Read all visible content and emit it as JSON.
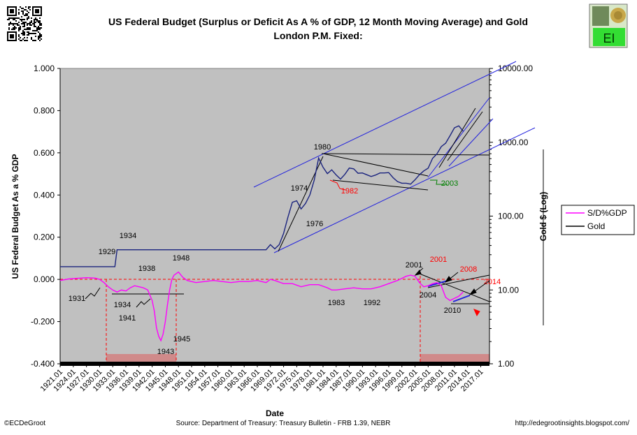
{
  "chart_data": {
    "type": "line",
    "title_line1": "US Federal Budget (Surplus or Deficit As A % of GDP, 12 Month Moving Average) and Gold",
    "title_line2": "London P.M. Fixed:",
    "xlabel": "Date",
    "ylabel_left": "US Federal Budget As a %  GDP",
    "ylabel_right": "Gold $ (Log)",
    "y_left_ticks": [
      "1.000",
      "0.800",
      "0.600",
      "0.400",
      "0.200",
      "0.000",
      "-0.200",
      "-0.400"
    ],
    "y_left_range": [
      -0.4,
      1.0
    ],
    "y_right_ticks": [
      "10000.00",
      "1000.00",
      "100.00",
      "10.00",
      "1.00"
    ],
    "y_right_scale": "log",
    "y_right_range": [
      1,
      10000
    ],
    "x_ticks": [
      "1921.01",
      "1924.01",
      "1927.01",
      "1930.01",
      "1933.01",
      "1936.01",
      "1939.01",
      "1942.01",
      "1945.01",
      "1948.01",
      "1951.01",
      "1954.01",
      "1957.01",
      "1960.01",
      "1963.01",
      "1966.01",
      "1969.01",
      "1972.01",
      "1975.01",
      "1978.01",
      "1981.01",
      "1984.01",
      "1987.01",
      "1990.01",
      "1993.01",
      "1996.01",
      "1999.01",
      "2002.01",
      "2005.01",
      "2008.01",
      "2011.01",
      "2014.01",
      "2017.01"
    ],
    "x_range": [
      1921,
      2019
    ],
    "legend": {
      "placement": "right",
      "entries": [
        "S/D%GDP",
        "Gold"
      ]
    },
    "series": [
      {
        "name": "S/D%GDP",
        "color": "#ff00ff",
        "axis": "left",
        "x": [
          1921,
          1923,
          1925,
          1927,
          1929,
          1930,
          1931,
          1932,
          1933,
          1934,
          1935,
          1936,
          1937,
          1938,
          1939,
          1940,
          1941,
          1942,
          1942.5,
          1943,
          1943.5,
          1944,
          1944.5,
          1945,
          1945.5,
          1946,
          1946.5,
          1947,
          1948,
          1949,
          1950,
          1952,
          1954,
          1956,
          1958,
          1960,
          1962,
          1964,
          1966,
          1968,
          1969,
          1970,
          1972,
          1974,
          1976,
          1978,
          1980,
          1982,
          1983,
          1984,
          1986,
          1988,
          1990,
          1992,
          1994,
          1996,
          1998,
          2000,
          2001,
          2002,
          2003,
          2004,
          2005,
          2006,
          2007,
          2008,
          2009,
          2010,
          2011,
          2012,
          2013
        ],
        "y": [
          -0.005,
          0.002,
          0.005,
          0.008,
          0.006,
          0.0,
          -0.015,
          -0.035,
          -0.05,
          -0.06,
          -0.05,
          -0.055,
          -0.04,
          -0.03,
          -0.035,
          -0.04,
          -0.05,
          -0.1,
          -0.15,
          -0.23,
          -0.27,
          -0.29,
          -0.26,
          -0.2,
          -0.12,
          -0.05,
          0.0,
          0.02,
          0.035,
          0.01,
          -0.005,
          -0.015,
          -0.01,
          -0.005,
          -0.01,
          -0.015,
          -0.01,
          -0.01,
          -0.005,
          -0.015,
          0.0,
          -0.005,
          -0.02,
          -0.02,
          -0.035,
          -0.025,
          -0.025,
          -0.04,
          -0.05,
          -0.05,
          -0.045,
          -0.04,
          -0.045,
          -0.045,
          -0.035,
          -0.02,
          -0.005,
          0.015,
          0.02,
          0.015,
          -0.015,
          -0.035,
          -0.03,
          -0.02,
          -0.015,
          -0.03,
          -0.085,
          -0.1,
          -0.09,
          -0.08,
          -0.06
        ]
      },
      {
        "name": "Gold",
        "color": "#1a237e",
        "axis": "right",
        "x": [
          1921,
          1933.5,
          1934,
          1968,
          1969,
          1970,
          1971,
          1972,
          1973,
          1974,
          1975,
          1976,
          1977,
          1978,
          1979,
          1980,
          1981,
          1982,
          1983,
          1984,
          1985,
          1986,
          1987,
          1988,
          1989,
          1990,
          1991,
          1992,
          1993,
          1994,
          1995,
          1996,
          1997,
          1998,
          1999,
          2000,
          2001,
          2002,
          2003,
          2004,
          2005,
          2006,
          2007,
          2008,
          2009,
          2010,
          2011,
          2012,
          2013
        ],
        "y": [
          20.67,
          20.67,
          35,
          35,
          41,
          36,
          41,
          58,
          97,
          154,
          161,
          125,
          148,
          193,
          307,
          612,
          460,
          376,
          424,
          361,
          317,
          368,
          447,
          437,
          381,
          384,
          363,
          344,
          360,
          384,
          384,
          388,
          331,
          294,
          279,
          279,
          271,
          310,
          363,
          409,
          445,
          604,
          695,
          872,
          972,
          1225,
          1572,
          1669,
          1411
        ]
      }
    ],
    "annotations": [
      {
        "text": "1934",
        "color": "#000000"
      },
      {
        "text": "1929",
        "color": "#000000"
      },
      {
        "text": "1938",
        "color": "#000000"
      },
      {
        "text": "1948",
        "color": "#000000"
      },
      {
        "text": "1931",
        "color": "#000000"
      },
      {
        "text": "1934",
        "color": "#000000"
      },
      {
        "text": "1941",
        "color": "#000000"
      },
      {
        "text": "1945",
        "color": "#000000"
      },
      {
        "text": "1943",
        "color": "#000000"
      },
      {
        "text": "1980",
        "color": "#000000"
      },
      {
        "text": "1974",
        "color": "#000000"
      },
      {
        "text": "1976",
        "color": "#000000"
      },
      {
        "text": "1982",
        "color": "#ff0000"
      },
      {
        "text": "2003",
        "color": "#008000"
      },
      {
        "text": "1983",
        "color": "#000000"
      },
      {
        "text": "1992",
        "color": "#000000"
      },
      {
        "text": "2001",
        "color": "#000000"
      },
      {
        "text": "2001",
        "color": "#ff0000"
      },
      {
        "text": "2008",
        "color": "#ff0000"
      },
      {
        "text": "2014",
        "color": "#ff0000"
      },
      {
        "text": "2004",
        "color": "#000000"
      },
      {
        "text": "2010",
        "color": "#000000"
      }
    ]
  },
  "footer": {
    "left": "©ECDeGroot",
    "center": "Source:  Department of Treasury: Treasury Bulletin - FRB 1.39, NEBR",
    "right": "http://edegrootinsights.blogspot.com/"
  },
  "logo": {
    "text": "EI"
  },
  "colors": {
    "plot_bg": "#c0c0c0",
    "trend_blue": "#2222dd",
    "trend_black": "#000000",
    "deficit_zone": "#d08a8a"
  }
}
